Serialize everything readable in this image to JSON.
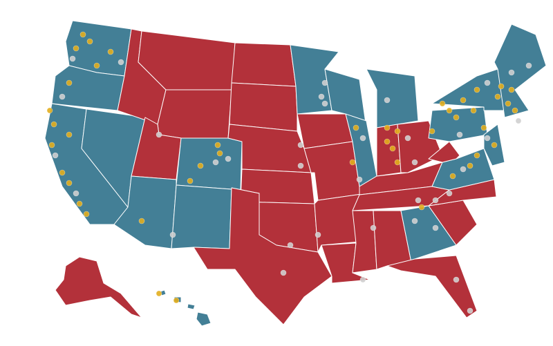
{
  "map": {
    "colors": [
      "#b3313a",
      "#437f96",
      "#e2ae1e",
      "#cfcfcf"
    ]
  }
}
